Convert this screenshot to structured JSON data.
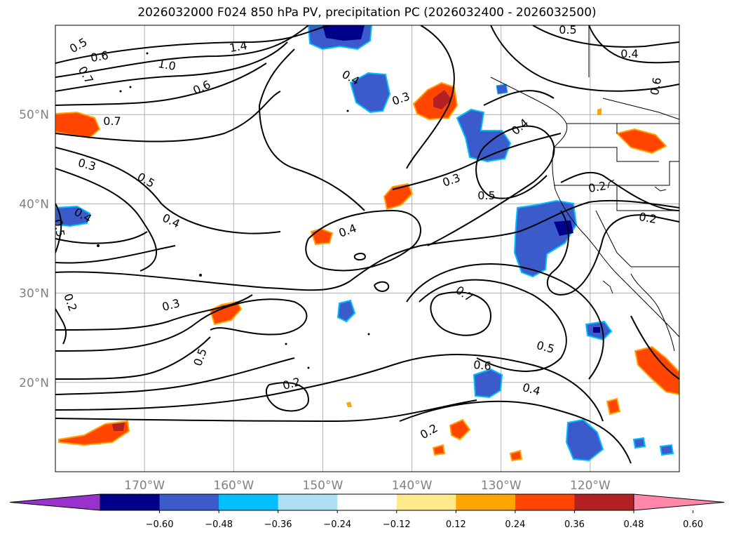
{
  "title": "2026032000 F024 850 hPa PV, precipitation PC (2026032400 - 2026032500)",
  "map": {
    "lon_range": [
      -180,
      -110
    ],
    "lat_range": [
      10,
      60
    ],
    "lon_ticks": [
      {
        "lon": -170,
        "label": "170°W"
      },
      {
        "lon": -160,
        "label": "160°W"
      },
      {
        "lon": -150,
        "label": "150°W"
      },
      {
        "lon": -140,
        "label": "140°W"
      },
      {
        "lon": -130,
        "label": "130°W"
      },
      {
        "lon": -120,
        "label": "120°W"
      }
    ],
    "lat_ticks": [
      {
        "lat": 20,
        "label": "20°N"
      },
      {
        "lat": 30,
        "label": "30°N"
      },
      {
        "lat": 40,
        "label": "40°N"
      },
      {
        "lat": 50,
        "label": "50°N"
      }
    ],
    "contour_labels": [
      "0.5",
      "0.6",
      "0.7",
      "1.0",
      "1.4",
      "0.6",
      "0.3",
      "0.7",
      "0.3",
      "0.5",
      "0.4",
      "0.4",
      "0.5",
      "0.3",
      "0.2",
      "0.5",
      "0.4",
      "0.4",
      "0.3",
      "0.5",
      "0.2",
      "0.2",
      "0.7",
      "0.5",
      "0.6",
      "0.4",
      "0.2",
      "0.2",
      "0.4",
      "0.5",
      "0.6",
      "0.4"
    ]
  },
  "colorbar": {
    "colors": [
      "#9932cc",
      "#00008b",
      "#3a5bc9",
      "#00bfff",
      "#ade0f5",
      "#ffffff",
      "#ffe98a",
      "#ffa500",
      "#ff4500",
      "#b22222",
      "#ff88aa"
    ],
    "tick_labels": [
      "−0.60",
      "−0.48",
      "−0.36",
      "−0.24",
      "−0.12",
      "0.12",
      "0.24",
      "0.36",
      "0.48",
      "0.60"
    ]
  }
}
